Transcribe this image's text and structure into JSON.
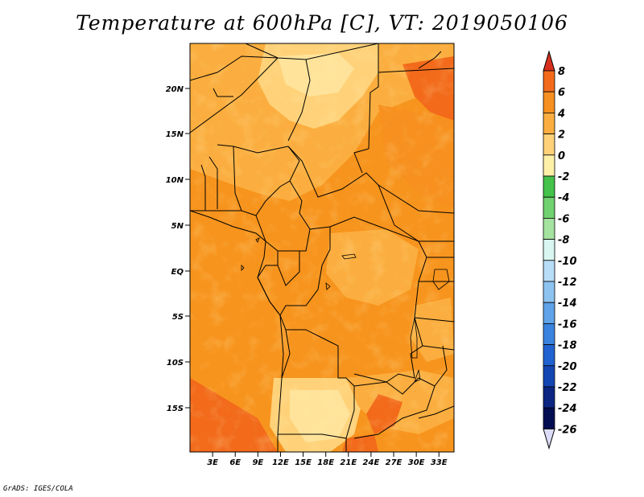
{
  "title": "Temperature at 600hPa [C], VT: 2019050106",
  "credit": "GrADS: IGES/COLA",
  "map": {
    "lat_labels": [
      "20N",
      "15N",
      "10N",
      "5N",
      "EQ",
      "5S",
      "10S",
      "15S"
    ],
    "lon_labels": [
      "3E",
      "6E",
      "9E",
      "12E",
      "15E",
      "18E",
      "21E",
      "24E",
      "27E",
      "30E",
      "33E"
    ],
    "lon_range": [
      0,
      35
    ],
    "lat_range": [
      -20,
      24
    ]
  },
  "colorbar": {
    "labels": [
      "8",
      "6",
      "4",
      "2",
      "0",
      "-2",
      "-4",
      "-6",
      "-8",
      "-10",
      "-12",
      "-14",
      "-16",
      "-18",
      "-20",
      "-22",
      "-24",
      "-26"
    ],
    "colors": [
      "#e8401a",
      "#f26a1a",
      "#f7901e",
      "#fbae3f",
      "#ffd27a",
      "#fff0a8",
      "#44c24a",
      "#6fd16f",
      "#a4e3a0",
      "#d9f6f0",
      "#b7ddf7",
      "#8ec3f0",
      "#5fa3e8",
      "#3a84df",
      "#2062d1",
      "#1446b3",
      "#0c2682",
      "#030d52"
    ],
    "top_tri_color": "#d7301f",
    "bottom_tri_color": "#dcdcf8"
  }
}
